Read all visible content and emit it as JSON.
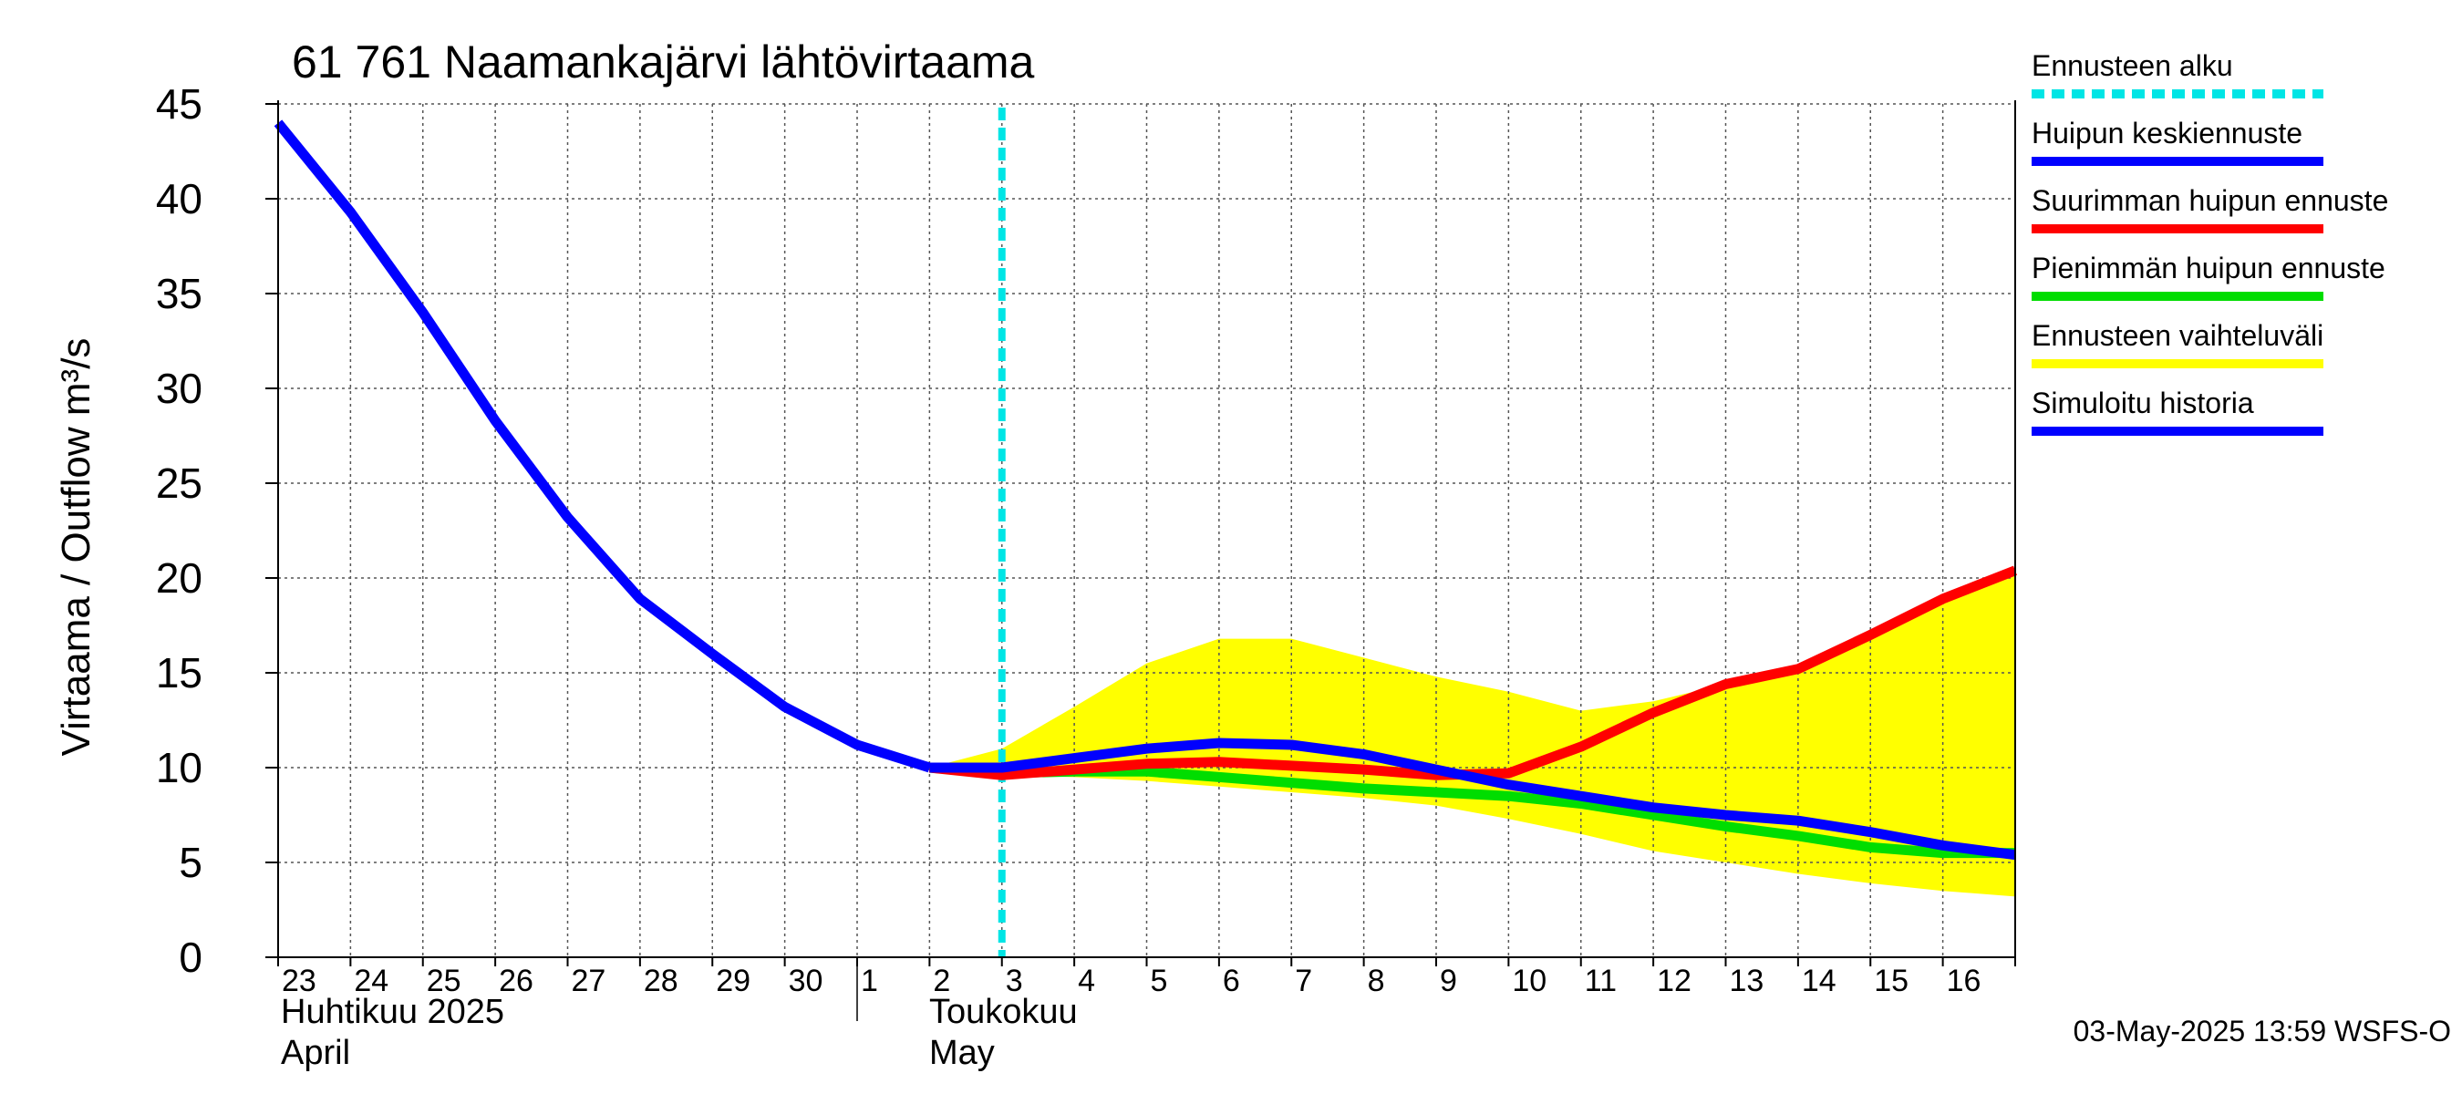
{
  "chart_data": {
    "type": "line",
    "title": "61 761 Naamankajärvi lähtövirtaama",
    "ylabel": "Virtaama / Outflow    m³/s",
    "ylim": [
      0,
      45
    ],
    "yticks": [
      "0",
      "5",
      "10",
      "15",
      "20",
      "25",
      "30",
      "35",
      "40",
      "45"
    ],
    "x_dates": [
      "2025-04-23",
      "2025-04-24",
      "2025-04-25",
      "2025-04-26",
      "2025-04-27",
      "2025-04-28",
      "2025-04-29",
      "2025-04-30",
      "2025-05-01",
      "2025-05-02",
      "2025-05-03",
      "2025-05-04",
      "2025-05-05",
      "2025-05-06",
      "2025-05-07",
      "2025-05-08",
      "2025-05-09",
      "2025-05-10",
      "2025-05-11",
      "2025-05-12",
      "2025-05-13",
      "2025-05-14",
      "2025-05-15",
      "2025-05-16",
      "2025-05-17"
    ],
    "day_labels": [
      "23",
      "24",
      "25",
      "26",
      "27",
      "28",
      "29",
      "30",
      "1",
      "2",
      "3",
      "4",
      "5",
      "6",
      "7",
      "8",
      "9",
      "10",
      "11",
      "12",
      "13",
      "14",
      "15",
      "16"
    ],
    "month_labels": [
      {
        "line1": "Huhtikuu  2025",
        "line2": "April"
      },
      {
        "line1": "Toukokuu",
        "line2": "May"
      }
    ],
    "forecast_start": "2025-05-03 00:00",
    "series": [
      {
        "name": "Ennusteen vaihteluväli",
        "color": "#ffff00",
        "type": "band",
        "upper": [
          null,
          null,
          null,
          null,
          null,
          null,
          null,
          null,
          null,
          10.0,
          11.0,
          13.2,
          15.5,
          16.8,
          16.8,
          15.8,
          14.8,
          14.0,
          13.0,
          13.5,
          14.4,
          15.2,
          17.0,
          18.9,
          20.4
        ],
        "lower": [
          null,
          null,
          null,
          null,
          null,
          null,
          null,
          null,
          null,
          10.0,
          9.6,
          9.5,
          9.3,
          9.0,
          8.7,
          8.4,
          8.0,
          7.3,
          6.5,
          5.6,
          5.0,
          4.4,
          3.9,
          3.5,
          3.2
        ]
      },
      {
        "name": "Suurimman huipun ennuste",
        "color": "#ff0000",
        "values": [
          null,
          null,
          null,
          null,
          null,
          null,
          null,
          null,
          null,
          10.0,
          9.6,
          9.9,
          10.2,
          10.3,
          10.1,
          9.9,
          9.6,
          9.7,
          11.1,
          12.9,
          14.4,
          15.2,
          17.0,
          18.9,
          20.4
        ]
      },
      {
        "name": "Pienimmän huipun ennuste",
        "color": "#00dd00",
        "values": [
          null,
          null,
          null,
          null,
          null,
          null,
          null,
          null,
          null,
          10.0,
          9.7,
          9.8,
          9.8,
          9.5,
          9.2,
          8.9,
          8.7,
          8.5,
          8.1,
          7.5,
          6.9,
          6.4,
          5.8,
          5.5,
          5.5
        ]
      },
      {
        "name": "Huipun keskiennuste",
        "color": "#0000ff",
        "values": [
          null,
          null,
          null,
          null,
          null,
          null,
          null,
          null,
          null,
          10.0,
          10.0,
          10.5,
          11.0,
          11.3,
          11.2,
          10.7,
          9.9,
          9.1,
          8.5,
          7.9,
          7.5,
          7.2,
          6.6,
          5.9,
          5.4
        ]
      },
      {
        "name": "Simuloitu historia",
        "color": "#0000ff",
        "values": [
          44.0,
          39.3,
          34.0,
          28.3,
          23.2,
          18.9,
          16.0,
          13.2,
          11.2,
          10.0,
          null,
          null,
          null,
          null,
          null,
          null,
          null,
          null,
          null,
          null,
          null,
          null,
          null,
          null,
          null
        ]
      }
    ],
    "legend": [
      {
        "label": "Ennusteen alku",
        "color": "#00e5e5",
        "style": "dashed"
      },
      {
        "label": "Huipun keskiennuste",
        "color": "#0000ff",
        "style": "solid"
      },
      {
        "label": "Suurimman huipun ennuste",
        "color": "#ff0000",
        "style": "solid"
      },
      {
        "label": "Pienimmän huipun ennuste",
        "color": "#00dd00",
        "style": "solid"
      },
      {
        "label": "Ennusteen vaihteluväli",
        "color": "#ffff00",
        "style": "solid"
      },
      {
        "label": "Simuloitu historia",
        "color": "#0000ff",
        "style": "solid"
      }
    ],
    "legend_position": "right",
    "grid": true,
    "footer": "03-May-2025 13:59 WSFS-O"
  }
}
